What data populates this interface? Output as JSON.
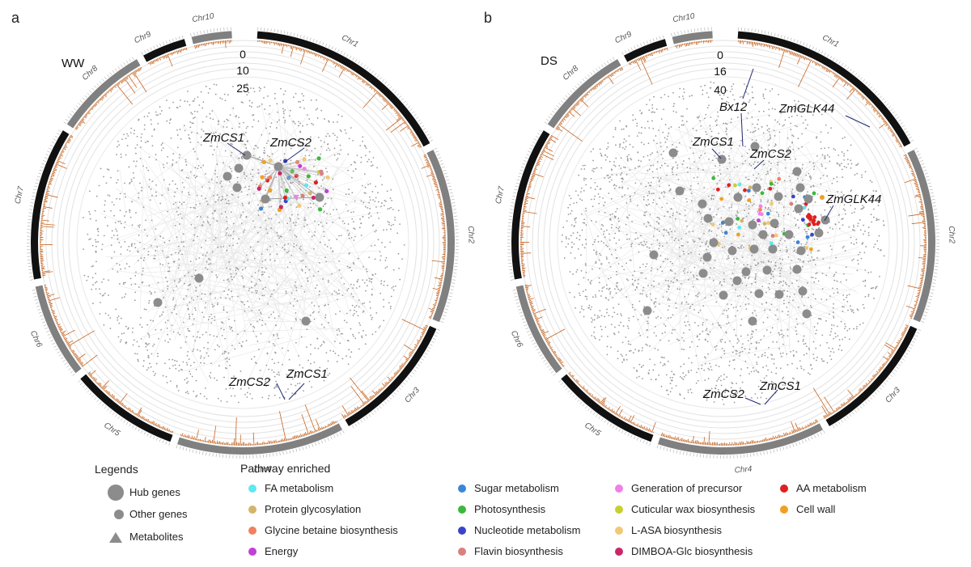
{
  "panels": [
    {
      "letter": "a",
      "condition": "WW",
      "scale_ticks": [
        "0",
        "10",
        "25"
      ],
      "chromosomes": [
        "Chr1",
        "Chr2",
        "Chr3",
        "Chr4",
        "Chr5",
        "Chr6",
        "Chr7",
        "Chr8",
        "Chr9",
        "Chr10"
      ],
      "gene_labels": {
        "network_zmcs1": "ZmCS1",
        "network_zmcs2": "ZmCS2",
        "track_zmcs2": "ZmCS2",
        "track_zmcs1": "ZmCS1"
      }
    },
    {
      "letter": "b",
      "condition": "DS",
      "scale_ticks": [
        "0",
        "16",
        "40"
      ],
      "chromosomes": [
        "Chr1",
        "Chr2",
        "Chr3",
        "Chr4",
        "Chr5",
        "Chr6",
        "Chr7",
        "Chr8",
        "Chr9",
        "Chr10"
      ],
      "gene_labels": {
        "bx12": "Bx12",
        "zmglk44_top": "ZmGLK44",
        "network_zmcs1": "ZmCS1",
        "network_zmcs2": "ZmCS2",
        "network_zmglk44": "ZmGLK44",
        "track_zmcs2": "ZmCS2",
        "track_zmcs1": "ZmCS1"
      }
    }
  ],
  "legends": {
    "title": "Legends",
    "items": [
      {
        "label": "Hub genes",
        "shape": "large-circle",
        "color": "#8c8c8c"
      },
      {
        "label": "Other genes",
        "shape": "small-circle",
        "color": "#8c8c8c"
      },
      {
        "label": "Metabolites",
        "shape": "triangle",
        "color": "#8c8c8c"
      }
    ]
  },
  "pathways": {
    "title": "Pathway enriched",
    "items": [
      {
        "label": "FA metabolism",
        "color": "#5ee8f0"
      },
      {
        "label": "Protein glycosylation",
        "color": "#d4b46a"
      },
      {
        "label": "Glycine betaine biosynthesis",
        "color": "#f08060"
      },
      {
        "label": "Energy",
        "color": "#c040d8"
      },
      {
        "label": "Sugar metabolism",
        "color": "#3a86d8"
      },
      {
        "label": "Photosynthesis",
        "color": "#3cb83c"
      },
      {
        "label": "Nucleotide metabolism",
        "color": "#3a44c8"
      },
      {
        "label": "Flavin biosynthesis",
        "color": "#d88080"
      },
      {
        "label": "Generation of precursor",
        "color": "#f080e8"
      },
      {
        "label": "Cuticular wax biosynthesis",
        "color": "#c8d030"
      },
      {
        "label": "L-ASA biosynthesis",
        "color": "#f0c878"
      },
      {
        "label": "DIMBOA-Glc biosynthesis",
        "color": "#c82868"
      },
      {
        "label": "AA metabolism",
        "color": "#e02020"
      },
      {
        "label": "Cell wall",
        "color": "#f0a020"
      }
    ]
  },
  "colors": {
    "chr_dark": "#111111",
    "chr_gray": "#808080",
    "track": "#c8641e",
    "node": "#8c8c8c",
    "edge": "#bdbdbd"
  }
}
